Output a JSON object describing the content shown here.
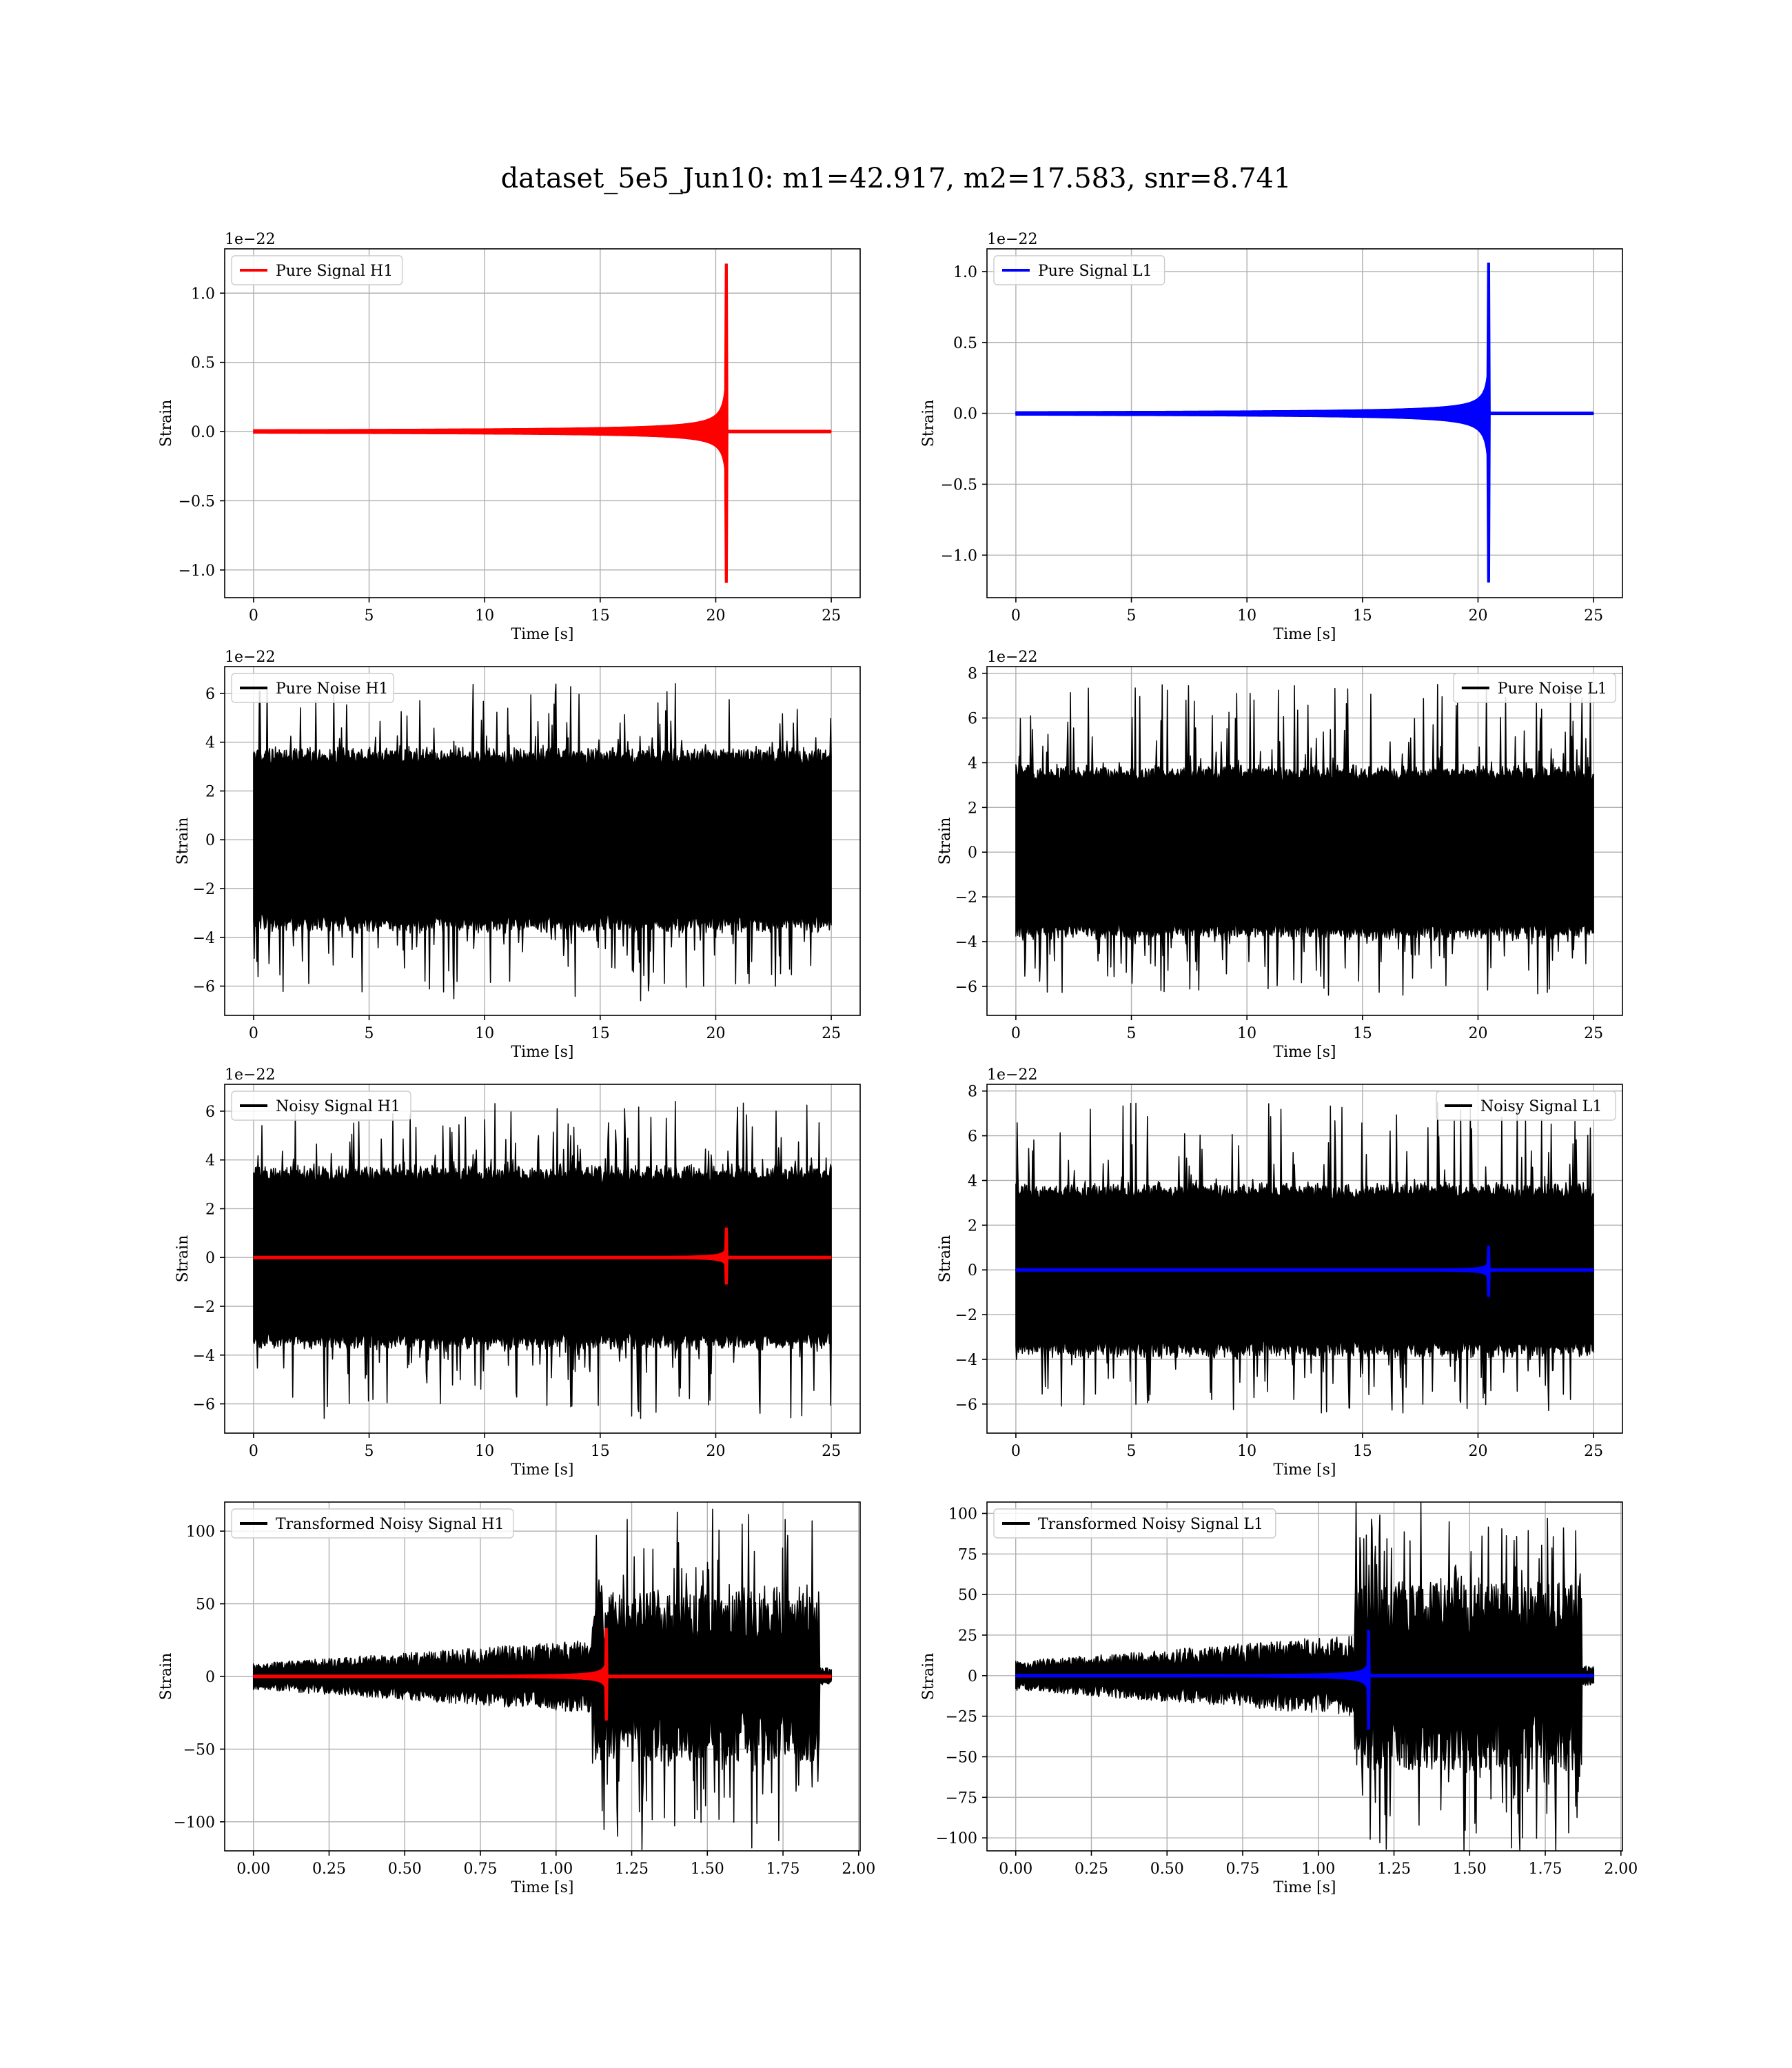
{
  "figure": {
    "suptitle": "dataset_5e5_Jun10: m1=42.917, m2=17.583, snr=8.741"
  },
  "colors": {
    "h1_signal": "#ff0000",
    "l1_signal": "#0000ff",
    "noise": "#000000",
    "grid": "#b0b0b0"
  },
  "chart_data": [
    {
      "id": "pure-signal-h1",
      "type": "line",
      "title": "",
      "xlabel": "Time [s]",
      "ylabel": "Strain",
      "offset_text": "1e−22",
      "xlim": [
        -1.25,
        26.25
      ],
      "ylim": [
        -1.2,
        1.32
      ],
      "xticks": [
        0,
        5,
        10,
        15,
        20,
        25
      ],
      "xtick_labels": [
        "0",
        "5",
        "10",
        "15",
        "20",
        "25"
      ],
      "yticks": [
        -1.0,
        -0.5,
        0.0,
        0.5,
        1.0
      ],
      "ytick_labels": [
        "−1.0",
        "−0.5",
        "0.0",
        "0.5",
        "1.0"
      ],
      "grid": true,
      "legend_loc": "upper left",
      "series": [
        {
          "name": "Pure Signal H1",
          "color": "#ff0000",
          "kind": "chirp",
          "t_end": 25,
          "t_merger": 20.5,
          "peak": 1.21,
          "trough": -1.09,
          "in_legend": true
        }
      ]
    },
    {
      "id": "pure-signal-l1",
      "type": "line",
      "title": "",
      "xlabel": "Time [s]",
      "ylabel": "Strain",
      "offset_text": "1e−22",
      "xlim": [
        -1.25,
        26.25
      ],
      "ylim": [
        -1.3,
        1.16
      ],
      "xticks": [
        0,
        5,
        10,
        15,
        20,
        25
      ],
      "xtick_labels": [
        "0",
        "5",
        "10",
        "15",
        "20",
        "25"
      ],
      "yticks": [
        -1.0,
        -0.5,
        0.0,
        0.5,
        1.0
      ],
      "ytick_labels": [
        "−1.0",
        "−0.5",
        "0.0",
        "0.5",
        "1.0"
      ],
      "grid": true,
      "legend_loc": "upper left",
      "series": [
        {
          "name": "Pure Signal L1",
          "color": "#0000ff",
          "kind": "chirp",
          "t_end": 25,
          "t_merger": 20.5,
          "peak": 1.06,
          "trough": -1.19,
          "in_legend": true
        }
      ]
    },
    {
      "id": "pure-noise-h1",
      "type": "line",
      "title": "",
      "xlabel": "Time [s]",
      "ylabel": "Strain",
      "offset_text": "1e−22",
      "xlim": [
        -1.25,
        26.25
      ],
      "ylim": [
        -7.2,
        7.1
      ],
      "xticks": [
        0,
        5,
        10,
        15,
        20,
        25
      ],
      "xtick_labels": [
        "0",
        "5",
        "10",
        "15",
        "20",
        "25"
      ],
      "yticks": [
        -6,
        -4,
        -2,
        0,
        2,
        4,
        6
      ],
      "ytick_labels": [
        "−6",
        "−4",
        "−2",
        "0",
        "2",
        "4",
        "6"
      ],
      "grid": true,
      "legend_loc": "upper left",
      "series": [
        {
          "name": "Pure Noise H1",
          "color": "#000000",
          "kind": "noise",
          "t_end": 25,
          "core": 3.2,
          "max": 6.4,
          "min": -6.6,
          "in_legend": true
        }
      ]
    },
    {
      "id": "pure-noise-l1",
      "type": "line",
      "title": "",
      "xlabel": "Time [s]",
      "ylabel": "Strain",
      "offset_text": "1e−22",
      "xlim": [
        -1.25,
        26.25
      ],
      "ylim": [
        -7.3,
        8.3
      ],
      "xticks": [
        0,
        5,
        10,
        15,
        20,
        25
      ],
      "xtick_labels": [
        "0",
        "5",
        "10",
        "15",
        "20",
        "25"
      ],
      "yticks": [
        -6,
        -4,
        -2,
        0,
        2,
        4,
        6,
        8
      ],
      "ytick_labels": [
        "−6",
        "−4",
        "−2",
        "0",
        "2",
        "4",
        "6",
        "8"
      ],
      "grid": true,
      "legend_loc": "upper right",
      "series": [
        {
          "name": "Pure Noise L1",
          "color": "#000000",
          "kind": "noise",
          "t_end": 25,
          "core": 3.3,
          "max": 7.5,
          "min": -6.4,
          "in_legend": true
        }
      ]
    },
    {
      "id": "noisy-signal-h1",
      "type": "line",
      "title": "",
      "xlabel": "Time [s]",
      "ylabel": "Strain",
      "offset_text": "1e−22",
      "xlim": [
        -1.25,
        26.25
      ],
      "ylim": [
        -7.2,
        7.1
      ],
      "xticks": [
        0,
        5,
        10,
        15,
        20,
        25
      ],
      "xtick_labels": [
        "0",
        "5",
        "10",
        "15",
        "20",
        "25"
      ],
      "yticks": [
        -6,
        -4,
        -2,
        0,
        2,
        4,
        6
      ],
      "ytick_labels": [
        "−6",
        "−4",
        "−2",
        "0",
        "2",
        "4",
        "6"
      ],
      "grid": true,
      "legend_loc": "upper left",
      "series": [
        {
          "name": "Noisy Signal H1",
          "color": "#000000",
          "kind": "noise",
          "t_end": 25,
          "core": 3.2,
          "max": 6.4,
          "min": -6.6,
          "in_legend": true
        },
        {
          "name": "",
          "color": "#ff0000",
          "kind": "chirp",
          "t_end": 25,
          "t_merger": 20.5,
          "peak": 1.21,
          "trough": -1.09,
          "in_legend": false
        }
      ]
    },
    {
      "id": "noisy-signal-l1",
      "type": "line",
      "title": "",
      "xlabel": "Time [s]",
      "ylabel": "Strain",
      "offset_text": "1e−22",
      "xlim": [
        -1.25,
        26.25
      ],
      "ylim": [
        -7.3,
        8.3
      ],
      "xticks": [
        0,
        5,
        10,
        15,
        20,
        25
      ],
      "xtick_labels": [
        "0",
        "5",
        "10",
        "15",
        "20",
        "25"
      ],
      "yticks": [
        -6,
        -4,
        -2,
        0,
        2,
        4,
        6,
        8
      ],
      "ytick_labels": [
        "−6",
        "−4",
        "−2",
        "0",
        "2",
        "4",
        "6",
        "8"
      ],
      "grid": true,
      "legend_loc": "upper right",
      "series": [
        {
          "name": "Noisy Signal L1",
          "color": "#000000",
          "kind": "noise",
          "t_end": 25,
          "core": 3.3,
          "max": 7.5,
          "min": -6.4,
          "in_legend": true
        },
        {
          "name": "",
          "color": "#0000ff",
          "kind": "chirp",
          "t_end": 25,
          "t_merger": 20.5,
          "peak": 1.06,
          "trough": -1.19,
          "in_legend": false
        }
      ]
    },
    {
      "id": "transformed-noisy-signal-h1",
      "type": "line",
      "title": "",
      "xlabel": "Time [s]",
      "ylabel": "Strain",
      "offset_text": "",
      "xlim": [
        -0.095,
        2.005
      ],
      "ylim": [
        -120,
        120
      ],
      "xticks": [
        0,
        0.25,
        0.5,
        0.75,
        1.0,
        1.25,
        1.5,
        1.75,
        2.0
      ],
      "xtick_labels": [
        "0.00",
        "0.25",
        "0.50",
        "0.75",
        "1.00",
        "1.25",
        "1.50",
        "1.75",
        "2.00"
      ],
      "yticks": [
        -100,
        -50,
        0,
        50,
        100
      ],
      "ytick_labels": [
        "−100",
        "−50",
        "0",
        "50",
        "100"
      ],
      "grid": true,
      "legend_loc": "upper left",
      "series": [
        {
          "name": "Transformed Noisy Signal H1",
          "color": "#000000",
          "kind": "tnoise",
          "t_end": 1.91,
          "t_split": 1.12,
          "t_cut": 1.87,
          "low": 6,
          "high": 45,
          "max": 108,
          "min": -110,
          "in_legend": true
        },
        {
          "name": "",
          "color": "#ff0000",
          "kind": "chirp",
          "t_end": 1.91,
          "t_merger": 1.17,
          "peak": 33,
          "trough": -30,
          "in_legend": false
        }
      ]
    },
    {
      "id": "transformed-noisy-signal-l1",
      "type": "line",
      "title": "",
      "xlabel": "Time [s]",
      "ylabel": "Strain",
      "offset_text": "",
      "xlim": [
        -0.095,
        2.005
      ],
      "ylim": [
        -108,
        107
      ],
      "xticks": [
        0,
        0.25,
        0.5,
        0.75,
        1.0,
        1.25,
        1.5,
        1.75,
        2.0
      ],
      "xtick_labels": [
        "0.00",
        "0.25",
        "0.50",
        "0.75",
        "1.00",
        "1.25",
        "1.50",
        "1.75",
        "2.00"
      ],
      "yticks": [
        -100,
        -75,
        -50,
        -25,
        0,
        25,
        50,
        75,
        100
      ],
      "ytick_labels": [
        "−100",
        "−75",
        "−50",
        "−25",
        "0",
        "25",
        "50",
        "75",
        "100"
      ],
      "grid": true,
      "legend_loc": "upper left",
      "series": [
        {
          "name": "Transformed Noisy Signal L1",
          "color": "#000000",
          "kind": "tnoise",
          "t_end": 1.91,
          "t_split": 1.12,
          "t_cut": 1.87,
          "low": 6,
          "high": 45,
          "max": 97,
          "min": -103,
          "in_legend": true
        },
        {
          "name": "",
          "color": "#0000ff",
          "kind": "chirp",
          "t_end": 1.91,
          "t_merger": 1.17,
          "peak": 28,
          "trough": -33,
          "in_legend": false
        }
      ]
    }
  ]
}
